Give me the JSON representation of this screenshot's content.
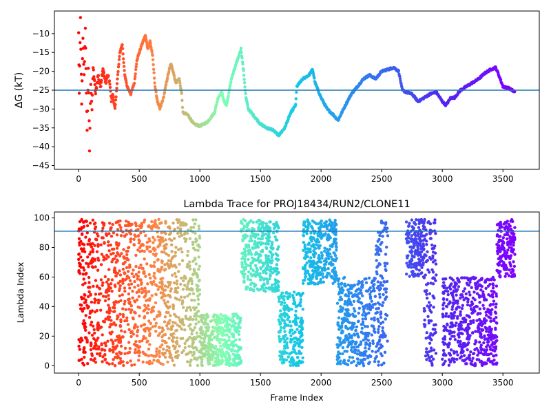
{
  "chart_data": [
    {
      "type": "scatter",
      "title": "",
      "xlabel": "",
      "ylabel": "ΔG (kT)",
      "xlim": [
        -200,
        3800
      ],
      "ylim": [
        -46,
        -4
      ],
      "xticks": [
        0,
        500,
        1000,
        1500,
        2000,
        2500,
        3000,
        3500
      ],
      "yticks": [
        -45,
        -40,
        -35,
        -30,
        -25,
        -20,
        -15,
        -10
      ],
      "xtick_labels": [
        "0",
        "500",
        "1000",
        "1500",
        "2000",
        "2500",
        "3000",
        "3500"
      ],
      "ytick_labels": [
        "−45",
        "−40",
        "−35",
        "−30",
        "−25",
        "−20",
        "−15",
        "−10"
      ],
      "hline": -25,
      "hline_color": "#1f77b4",
      "colormap": "rainbow (red at frame 0 → purple at last frame)",
      "trace_anchors": [
        [
          0,
          -10
        ],
        [
          5,
          -26
        ],
        [
          15,
          -6
        ],
        [
          25,
          -29
        ],
        [
          35,
          -11
        ],
        [
          45,
          -21
        ],
        [
          55,
          -9
        ],
        [
          70,
          -36
        ],
        [
          80,
          -19
        ],
        [
          90,
          -41
        ],
        [
          100,
          -23
        ],
        [
          110,
          -30
        ],
        [
          120,
          -19
        ],
        [
          140,
          -26
        ],
        [
          160,
          -21
        ],
        [
          180,
          -24
        ],
        [
          200,
          -19
        ],
        [
          220,
          -23
        ],
        [
          240,
          -21
        ],
        [
          260,
          -24
        ],
        [
          270,
          -28
        ],
        [
          280,
          -26
        ],
        [
          300,
          -30
        ],
        [
          320,
          -22
        ],
        [
          340,
          -15
        ],
        [
          360,
          -13
        ],
        [
          380,
          -21
        ],
        [
          400,
          -24
        ],
        [
          430,
          -26
        ],
        [
          460,
          -23
        ],
        [
          480,
          -17
        ],
        [
          500,
          -15
        ],
        [
          520,
          -13
        ],
        [
          550,
          -10.5
        ],
        [
          570,
          -14
        ],
        [
          590,
          -12
        ],
        [
          610,
          -16
        ],
        [
          630,
          -24
        ],
        [
          650,
          -28
        ],
        [
          670,
          -30
        ],
        [
          700,
          -27
        ],
        [
          730,
          -22
        ],
        [
          760,
          -18
        ],
        [
          780,
          -20
        ],
        [
          800,
          -23
        ],
        [
          830,
          -22
        ],
        [
          850,
          -26
        ],
        [
          860,
          -31
        ],
        [
          900,
          -31.5
        ],
        [
          950,
          -34
        ],
        [
          1000,
          -34.5
        ],
        [
          1060,
          -33.5
        ],
        [
          1120,
          -31
        ],
        [
          1150,
          -27
        ],
        [
          1180,
          -25.5
        ],
        [
          1200,
          -28
        ],
        [
          1220,
          -29
        ],
        [
          1260,
          -22
        ],
        [
          1300,
          -18
        ],
        [
          1330,
          -15
        ],
        [
          1340,
          -14
        ],
        [
          1360,
          -20
        ],
        [
          1380,
          -27
        ],
        [
          1400,
          -30
        ],
        [
          1450,
          -32
        ],
        [
          1500,
          -34
        ],
        [
          1550,
          -35
        ],
        [
          1600,
          -35.5
        ],
        [
          1650,
          -37
        ],
        [
          1700,
          -35
        ],
        [
          1750,
          -31
        ],
        [
          1790,
          -29
        ],
        [
          1800,
          -24
        ],
        [
          1850,
          -22
        ],
        [
          1900,
          -21
        ],
        [
          1930,
          -19.5
        ],
        [
          1950,
          -23
        ],
        [
          2000,
          -27
        ],
        [
          2050,
          -30
        ],
        [
          2100,
          -31.5
        ],
        [
          2140,
          -33
        ],
        [
          2200,
          -29
        ],
        [
          2250,
          -26
        ],
        [
          2300,
          -24
        ],
        [
          2350,
          -22
        ],
        [
          2400,
          -21
        ],
        [
          2450,
          -22
        ],
        [
          2500,
          -20
        ],
        [
          2550,
          -19.5
        ],
        [
          2600,
          -19
        ],
        [
          2640,
          -20
        ],
        [
          2670,
          -25
        ],
        [
          2700,
          -25.5
        ],
        [
          2750,
          -26
        ],
        [
          2800,
          -28
        ],
        [
          2850,
          -27
        ],
        [
          2900,
          -26
        ],
        [
          2950,
          -25.5
        ],
        [
          3000,
          -28
        ],
        [
          3030,
          -29
        ],
        [
          3070,
          -27
        ],
        [
          3100,
          -27
        ],
        [
          3150,
          -25
        ],
        [
          3200,
          -24
        ],
        [
          3250,
          -23
        ],
        [
          3300,
          -22
        ],
        [
          3350,
          -20.5
        ],
        [
          3400,
          -19.5
        ],
        [
          3440,
          -19
        ],
        [
          3460,
          -20.5
        ],
        [
          3500,
          -24
        ],
        [
          3550,
          -24.5
        ],
        [
          3600,
          -25.5
        ]
      ]
    },
    {
      "type": "scatter",
      "title": "Lambda Trace for PROJ18434/RUN2/CLONE11",
      "xlabel": "Frame Index",
      "ylabel": "Lambda Index",
      "xlim": [
        -200,
        3800
      ],
      "ylim": [
        -5,
        104
      ],
      "xticks": [
        0,
        500,
        1000,
        1500,
        2000,
        2500,
        3000,
        3500
      ],
      "yticks": [
        0,
        20,
        40,
        60,
        80,
        100
      ],
      "xtick_labels": [
        "0",
        "500",
        "1000",
        "1500",
        "2000",
        "2500",
        "3000",
        "3500"
      ],
      "ytick_labels": [
        "0",
        "20",
        "40",
        "60",
        "80",
        "100"
      ],
      "hline": 91,
      "hline_color": "#1f77b4",
      "colormap": "rainbow (red at frame 0 → purple at last frame)",
      "n_frames": 3600,
      "lambda_range": [
        0,
        99
      ],
      "dense_bands": [
        [
          0,
          130,
          0,
          99
        ],
        [
          130,
          380,
          0,
          99
        ],
        [
          380,
          700,
          0,
          99
        ],
        [
          700,
          1000,
          0,
          99
        ],
        [
          1000,
          1340,
          0,
          35
        ],
        [
          1340,
          1650,
          50,
          99
        ],
        [
          1650,
          1850,
          0,
          50
        ],
        [
          1850,
          2130,
          55,
          99
        ],
        [
          2130,
          2450,
          0,
          60
        ],
        [
          2450,
          2550,
          0,
          99
        ],
        [
          2700,
          2850,
          60,
          99
        ],
        [
          2850,
          2950,
          0,
          99
        ],
        [
          3000,
          3450,
          0,
          60
        ],
        [
          3450,
          3600,
          60,
          99
        ]
      ]
    }
  ]
}
